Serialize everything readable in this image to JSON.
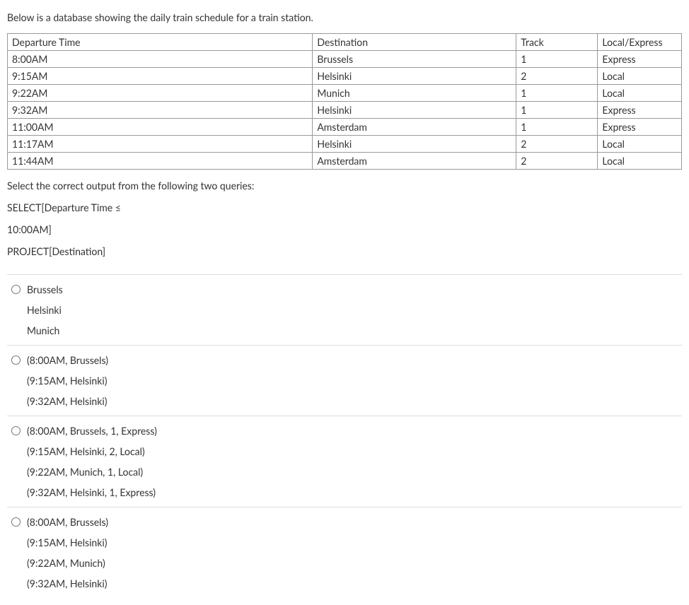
{
  "intro": "Below is a database showing the daily train schedule for a train station.",
  "table": {
    "columns": [
      "Departure Time",
      "Destination",
      "Track",
      "Local/Express"
    ],
    "rows": [
      [
        "8:00AM",
        "Brussels",
        "1",
        "Express"
      ],
      [
        "9:15AM",
        "Helsinki",
        "2",
        "Local"
      ],
      [
        "9:22AM",
        "Munich",
        "1",
        "Local"
      ],
      [
        "9:32AM",
        "Helsinki",
        "1",
        "Express"
      ],
      [
        "11:00AM",
        "Amsterdam",
        "1",
        "Express"
      ],
      [
        "11:17AM",
        "Helsinki",
        "2",
        "Local"
      ],
      [
        "11:44AM",
        "Amsterdam",
        "2",
        "Local"
      ]
    ]
  },
  "prompt": "Select the correct output from the following two queries:",
  "query": {
    "line1": "SELECT[Departure Time ≤",
    "line2": "10:00AM]",
    "line3": "PROJECT[Destination]"
  },
  "options": [
    {
      "lines": [
        "Brussels",
        "Helsinki",
        "Munich"
      ]
    },
    {
      "lines": [
        "(8:00AM, Brussels)",
        "(9:15AM, Helsinki)",
        "(9:32AM, Helsinki)"
      ]
    },
    {
      "lines": [
        "(8:00AM, Brussels, 1, Express)",
        "(9:15AM, Helsinki, 2, Local)",
        "(9:22AM, Munich, 1, Local)",
        "(9:32AM, Helsinki, 1, Express)"
      ]
    },
    {
      "lines": [
        "(8:00AM, Brussels)",
        "(9:15AM, Helsinki)",
        "(9:22AM, Munich)",
        "(9:32AM, Helsinki)"
      ]
    }
  ]
}
